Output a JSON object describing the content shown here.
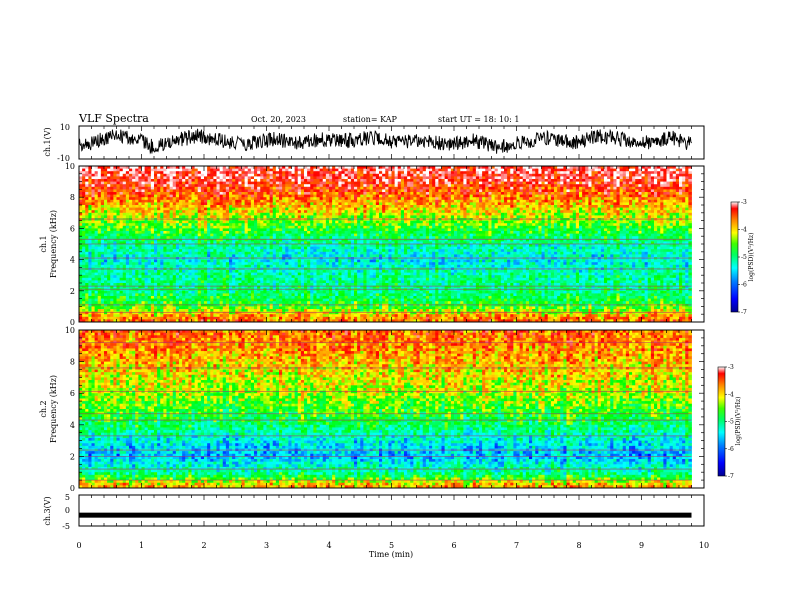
{
  "header": {
    "title": "VLF Spectra",
    "date": "Oct. 20, 2023",
    "station": "station= KAP",
    "start": "start  UT  =   18: 10: 1"
  },
  "chart_data": [
    {
      "type": "line",
      "panel": "ch1-waveform",
      "ylabel": "ch.1(V)",
      "ylim": [
        -10,
        10
      ],
      "y_ticks": [
        "10",
        "-10"
      ],
      "xlim": [
        0,
        10
      ],
      "x_extent_min": 9.8,
      "trend": [
        {
          "x": 0.0,
          "y": -2
        },
        {
          "x": 0.3,
          "y": 1
        },
        {
          "x": 0.6,
          "y": 4
        },
        {
          "x": 0.9,
          "y": 2
        },
        {
          "x": 1.2,
          "y": -3
        },
        {
          "x": 1.5,
          "y": 1
        },
        {
          "x": 1.9,
          "y": 4
        },
        {
          "x": 2.3,
          "y": 1
        },
        {
          "x": 2.7,
          "y": -1
        },
        {
          "x": 3.1,
          "y": 2
        },
        {
          "x": 3.5,
          "y": 0
        },
        {
          "x": 3.9,
          "y": 2
        },
        {
          "x": 4.3,
          "y": 1
        },
        {
          "x": 4.7,
          "y": 3
        },
        {
          "x": 5.1,
          "y": 0
        },
        {
          "x": 5.5,
          "y": 2
        },
        {
          "x": 5.9,
          "y": -1
        },
        {
          "x": 6.3,
          "y": 1
        },
        {
          "x": 6.7,
          "y": -3
        },
        {
          "x": 7.1,
          "y": 0
        },
        {
          "x": 7.5,
          "y": 3
        },
        {
          "x": 7.9,
          "y": 0
        },
        {
          "x": 8.3,
          "y": 4
        },
        {
          "x": 8.7,
          "y": 2
        },
        {
          "x": 9.1,
          "y": 0
        },
        {
          "x": 9.5,
          "y": 3
        },
        {
          "x": 9.8,
          "y": -1
        }
      ]
    },
    {
      "type": "heatmap",
      "panel": "ch1-spectrogram",
      "ylabel": "Frequency  (kHz)",
      "channel_label": "ch.1",
      "ylim": [
        0,
        10
      ],
      "y_ticks": [
        "0",
        "2",
        "4",
        "6",
        "8",
        "10"
      ],
      "xlim": [
        0,
        10
      ],
      "x_extent_min": 9.8,
      "colorbar": {
        "label": "log(PSD)(V²/Hz)",
        "range": [
          -7,
          -3
        ],
        "ticks": [
          "-3",
          "-4",
          "-5",
          "-6",
          "-7"
        ]
      },
      "level_profile": [
        {
          "f": 0.0,
          "v": -3.8
        },
        {
          "f": 0.3,
          "v": -3.9
        },
        {
          "f": 0.6,
          "v": -4.3
        },
        {
          "f": 1.0,
          "v": -4.8
        },
        {
          "f": 2.0,
          "v": -5.2
        },
        {
          "f": 3.0,
          "v": -5.3
        },
        {
          "f": 4.0,
          "v": -5.6
        },
        {
          "f": 5.0,
          "v": -5.3
        },
        {
          "f": 6.0,
          "v": -4.8
        },
        {
          "f": 7.0,
          "v": -4.3
        },
        {
          "f": 8.0,
          "v": -3.8
        },
        {
          "f": 9.0,
          "v": -3.4
        },
        {
          "f": 10.0,
          "v": -3.2
        }
      ],
      "lines_khz": [
        0.6,
        1.1,
        2.1,
        2.3,
        3.4,
        4.1,
        5.0,
        5.3,
        6.6
      ]
    },
    {
      "type": "heatmap",
      "panel": "ch2-spectrogram",
      "ylabel": "Frequency  (kHz)",
      "channel_label": "ch.2",
      "ylim": [
        0,
        10
      ],
      "y_ticks": [
        "0",
        "2",
        "4",
        "6",
        "8",
        "10"
      ],
      "xlim": [
        0,
        10
      ],
      "x_extent_min": 9.8,
      "colorbar": {
        "label": "log(PSD)(V²/Hz)",
        "range": [
          -7,
          -3
        ],
        "ticks": [
          "-3",
          "-4",
          "-5",
          "-6",
          "-7"
        ]
      },
      "level_profile": [
        {
          "f": 0.0,
          "v": -4.0
        },
        {
          "f": 0.3,
          "v": -4.2
        },
        {
          "f": 0.6,
          "v": -4.8
        },
        {
          "f": 1.0,
          "v": -5.3
        },
        {
          "f": 2.0,
          "v": -5.9
        },
        {
          "f": 3.0,
          "v": -5.6
        },
        {
          "f": 4.0,
          "v": -5.1
        },
        {
          "f": 5.0,
          "v": -4.8
        },
        {
          "f": 6.0,
          "v": -4.5
        },
        {
          "f": 7.0,
          "v": -4.3
        },
        {
          "f": 8.0,
          "v": -4.1
        },
        {
          "f": 9.0,
          "v": -3.9
        },
        {
          "f": 10.0,
          "v": -3.8
        }
      ],
      "lines_khz": [
        0.5,
        1.2,
        2.0,
        2.4,
        3.3,
        4.3,
        4.7,
        6.1,
        7.6,
        9.2
      ]
    },
    {
      "type": "line",
      "panel": "ch3-waveform",
      "ylabel": "ch.3(V)",
      "ylim": [
        -5,
        5
      ],
      "y_ticks": [
        "5",
        "0",
        "-5"
      ],
      "xlim": [
        0,
        10
      ],
      "x_extent_min": 9.8,
      "constant_value": -1.5
    }
  ],
  "x_axis": {
    "label": "Time  (min)",
    "ticks": [
      "0",
      "1",
      "2",
      "3",
      "4",
      "5",
      "6",
      "7",
      "8",
      "9",
      "10"
    ]
  },
  "colormap": [
    "#000090",
    "#0000ff",
    "#0080ff",
    "#00ffff",
    "#00ff80",
    "#00ff00",
    "#ffff00",
    "#ff8000",
    "#ff0000",
    "#ffffff"
  ]
}
